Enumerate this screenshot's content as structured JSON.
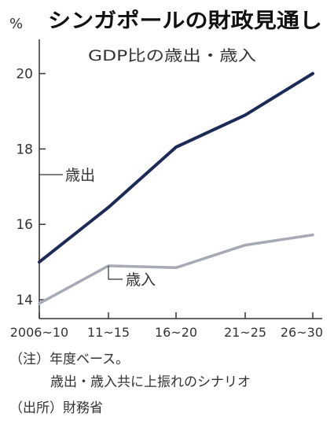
{
  "chart_data": {
    "type": "line",
    "title": "シンガポールの財政見通し",
    "subtitle": "GDP比の歳出・歳入",
    "unit_label": "%",
    "categories": [
      "2006~10",
      "11~15",
      "16~20",
      "21~25",
      "26~30"
    ],
    "yticks": [
      14,
      16,
      18,
      20
    ],
    "ylim": [
      13.5,
      20.7
    ],
    "grid": false,
    "series": [
      {
        "name": "歳出",
        "values": [
          15.0,
          16.45,
          18.05,
          18.9,
          20.0
        ],
        "color": "#1b2a57"
      },
      {
        "name": "歳入",
        "values": [
          13.9,
          14.9,
          14.85,
          15.45,
          15.72
        ],
        "color": "#a6aab6"
      }
    ]
  },
  "notes": {
    "note_1": "（注）年度ベース。",
    "note_2": "歳出・歳入共に上振れのシナリオ",
    "source": "（出所）財務省"
  }
}
